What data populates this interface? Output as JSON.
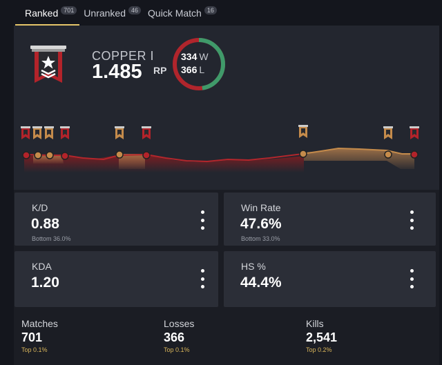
{
  "tabs": [
    {
      "label": "Ranked",
      "count": "701"
    },
    {
      "label": "Unranked",
      "count": "46"
    },
    {
      "label": "Quick Match",
      "count": "16"
    }
  ],
  "rank": {
    "name": "COPPER I",
    "rp": "1.485",
    "rp_unit": "RP",
    "wins": "334",
    "wins_suffix": "W",
    "losses": "366",
    "losses_suffix": "L",
    "win_fraction": 0.477,
    "icon": "copper-rank-banner-icon"
  },
  "colors": {
    "win": "#3f9a6a",
    "loss": "#b0252c",
    "copper": "#c0392b",
    "bronze": "#c58b4b",
    "accent": "#e6c66a"
  },
  "cards": [
    {
      "title": "K/D",
      "value": "0.88",
      "sub": "Bottom 36.0%"
    },
    {
      "title": "Win Rate",
      "value": "47.6%",
      "sub": "Bottom 33.0%"
    },
    {
      "title": "KDA",
      "value": "1.20",
      "sub": ""
    },
    {
      "title": "HS %",
      "value": "44.4%",
      "sub": ""
    }
  ],
  "stats": [
    {
      "title": "Matches",
      "value": "701",
      "sub": "Top 0.1%"
    },
    {
      "title": "Losses",
      "value": "366",
      "sub": "Top 0.1%"
    },
    {
      "title": "Kills",
      "value": "2,541",
      "sub": "Top 0.2%"
    }
  ]
}
